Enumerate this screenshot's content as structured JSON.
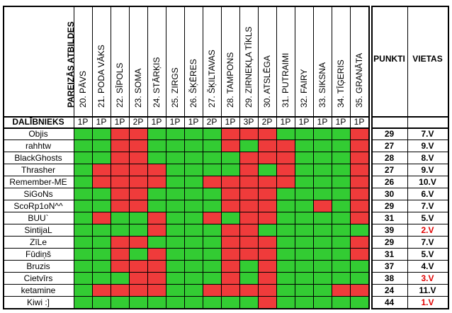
{
  "colors": {
    "correct": "#33cc33",
    "wrong": "#ef3b3b",
    "place_highlight": "#e00000"
  },
  "header": {
    "answers_title": "PAREIZĀS ATBILDES",
    "participant_col": "DALĪBNIEKS",
    "points_col": "PUNKTI",
    "place_col": "VIETAS"
  },
  "questions": [
    {
      "label": "20. PĀVS",
      "points": "1P"
    },
    {
      "label": "21. PODA VĀKS",
      "points": "1P"
    },
    {
      "label": "22. SĪPOLS",
      "points": "1P"
    },
    {
      "label": "23. SOMA",
      "points": "2P"
    },
    {
      "label": "24. STĀRĶIS",
      "points": "1P"
    },
    {
      "label": "25. ZIRGS",
      "points": "1P"
    },
    {
      "label": "26. ŠĶĒRES",
      "points": "1P"
    },
    {
      "label": "27. ŠĶILTAVAS",
      "points": "2P"
    },
    {
      "label": "28. TAMPONS",
      "points": "1P"
    },
    {
      "label": "29. ZIRNEKĻA TĪKLS",
      "points": "3P"
    },
    {
      "label": "30. ATSLĒGA",
      "points": "2P"
    },
    {
      "label": "31. PUTRAIMI",
      "points": "1P"
    },
    {
      "label": "32. FAIRY",
      "points": "1P"
    },
    {
      "label": "33. SIKSNA",
      "points": "1P"
    },
    {
      "label": "34. TĪĢERIS",
      "points": "1P"
    },
    {
      "label": "35. GRANĀTA",
      "points": "1P"
    }
  ],
  "rows": [
    {
      "name": "Objis",
      "points": "29",
      "place": "7.V",
      "highlight": false,
      "cells": [
        1,
        1,
        0,
        0,
        1,
        1,
        1,
        1,
        0,
        0,
        0,
        1,
        1,
        1,
        1,
        0
      ]
    },
    {
      "name": "rahhtw",
      "points": "27",
      "place": "9.V",
      "highlight": false,
      "cells": [
        1,
        1,
        0,
        0,
        1,
        1,
        1,
        1,
        0,
        1,
        0,
        0,
        1,
        1,
        1,
        0
      ]
    },
    {
      "name": "BlackGhosts",
      "points": "28",
      "place": "8.V",
      "highlight": false,
      "cells": [
        1,
        1,
        0,
        0,
        1,
        1,
        1,
        1,
        1,
        0,
        0,
        0,
        1,
        1,
        1,
        0
      ]
    },
    {
      "name": "Thrasher",
      "points": "27",
      "place": "9.V",
      "highlight": false,
      "cells": [
        1,
        0,
        0,
        0,
        0,
        1,
        1,
        1,
        1,
        0,
        1,
        0,
        1,
        1,
        1,
        0
      ]
    },
    {
      "name": "Remember-ME",
      "points": "26",
      "place": "10.V",
      "highlight": false,
      "cells": [
        1,
        0,
        0,
        0,
        0,
        1,
        1,
        0,
        0,
        0,
        0,
        0,
        1,
        1,
        1,
        0
      ]
    },
    {
      "name": "SiGoNs",
      "points": "30",
      "place": "6.V",
      "highlight": false,
      "cells": [
        1,
        1,
        0,
        0,
        1,
        1,
        1,
        1,
        0,
        0,
        0,
        1,
        1,
        1,
        1,
        0
      ]
    },
    {
      "name": "ScoRp1oN^^",
      "points": "29",
      "place": "7.V",
      "highlight": false,
      "cells": [
        1,
        1,
        0,
        0,
        1,
        1,
        1,
        1,
        0,
        0,
        0,
        1,
        1,
        0,
        1,
        0
      ]
    },
    {
      "name": "BUU`",
      "points": "31",
      "place": "5.V",
      "highlight": false,
      "cells": [
        1,
        0,
        1,
        1,
        0,
        1,
        1,
        0,
        1,
        0,
        0,
        1,
        1,
        1,
        1,
        0
      ]
    },
    {
      "name": "SintijaL",
      "points": "39",
      "place": "2.V",
      "highlight": true,
      "cells": [
        1,
        1,
        1,
        1,
        0,
        1,
        1,
        1,
        0,
        0,
        1,
        1,
        1,
        1,
        1,
        1
      ]
    },
    {
      "name": "ZīLe",
      "points": "29",
      "place": "7.V",
      "highlight": false,
      "cells": [
        1,
        1,
        0,
        0,
        1,
        1,
        1,
        1,
        0,
        0,
        0,
        1,
        1,
        1,
        1,
        0
      ]
    },
    {
      "name": "Fūdiņš",
      "points": "31",
      "place": "5.V",
      "highlight": false,
      "cells": [
        1,
        1,
        0,
        1,
        0,
        1,
        1,
        1,
        0,
        0,
        0,
        1,
        1,
        1,
        1,
        0
      ]
    },
    {
      "name": "Bruzis",
      "points": "37",
      "place": "4.V",
      "highlight": false,
      "cells": [
        1,
        1,
        0,
        0,
        0,
        1,
        1,
        1,
        0,
        1,
        0,
        1,
        1,
        1,
        1,
        1
      ]
    },
    {
      "name": "Cietvīrs",
      "points": "38",
      "place": "3.V",
      "highlight": true,
      "cells": [
        1,
        1,
        1,
        0,
        0,
        1,
        1,
        1,
        0,
        1,
        0,
        1,
        1,
        1,
        1,
        1
      ]
    },
    {
      "name": "ketamine",
      "points": "24",
      "place": "11.V",
      "highlight": false,
      "cells": [
        1,
        0,
        0,
        0,
        0,
        1,
        1,
        0,
        0,
        0,
        0,
        1,
        1,
        1,
        0,
        0
      ]
    },
    {
      "name": "Kiwi :]",
      "points": "44",
      "place": "1.V",
      "highlight": true,
      "cells": [
        1,
        1,
        1,
        1,
        1,
        1,
        1,
        1,
        1,
        1,
        0,
        1,
        1,
        1,
        1,
        1
      ]
    }
  ]
}
